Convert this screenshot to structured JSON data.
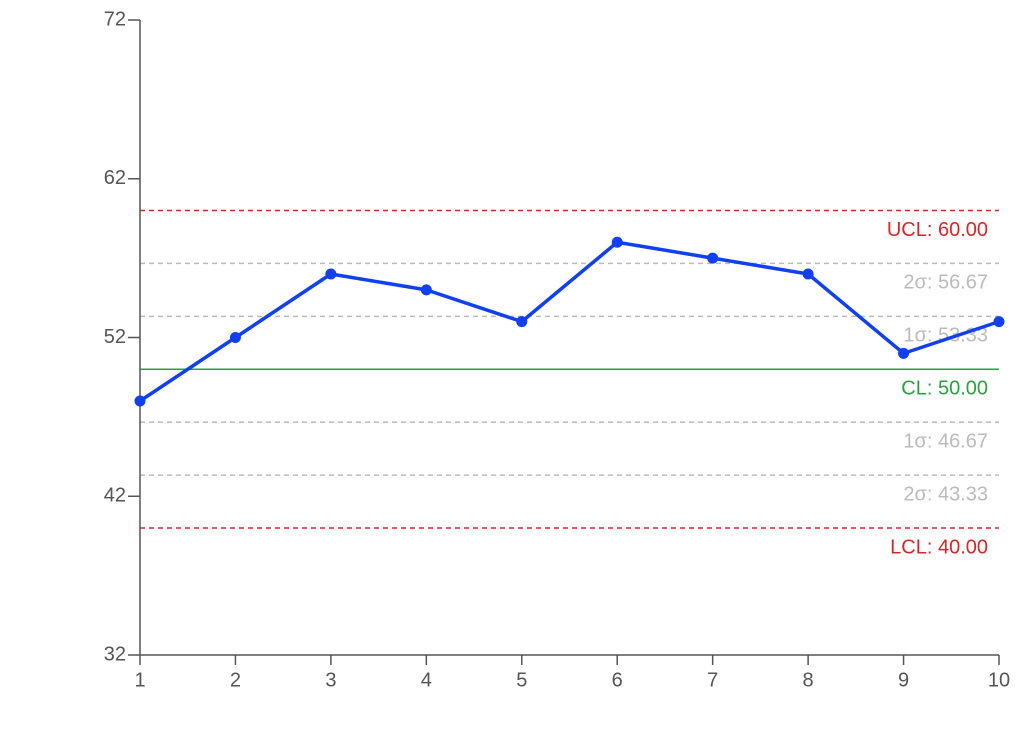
{
  "chart_data": {
    "type": "line",
    "x": [
      1,
      2,
      3,
      4,
      5,
      6,
      7,
      8,
      9,
      10
    ],
    "series": [
      {
        "color": "#1040f0",
        "values": [
          48,
          52,
          56,
          55,
          53,
          58,
          57,
          56,
          51,
          53
        ]
      }
    ],
    "xlim": [
      1,
      10
    ],
    "xticks": [
      1,
      2,
      3,
      4,
      5,
      6,
      7,
      8,
      9,
      10
    ],
    "ylim": [
      32,
      72
    ],
    "yticks": [
      32,
      42,
      52,
      62,
      72
    ],
    "control_lines": [
      {
        "value": 60,
        "label": "UCL: 60.00",
        "color": "#d62728",
        "dashed": true
      },
      {
        "value": 56.67,
        "label": "2σ: 56.67",
        "color": "#bbbbbb",
        "dashed": true
      },
      {
        "value": 53.33,
        "label": "1σ: 53.33",
        "color": "#bbbbbb",
        "dashed": true
      },
      {
        "value": 50,
        "label": "CL: 50.00",
        "color": "#2ca040",
        "dashed": false
      },
      {
        "value": 46.67,
        "label": "1σ: 46.67",
        "color": "#bbbbbb",
        "dashed": true
      },
      {
        "value": 43.33,
        "label": "2σ: 43.33",
        "color": "#bbbbbb",
        "dashed": true
      },
      {
        "value": 40,
        "label": "LCL: 40.00",
        "color": "#d62728",
        "dashed": true
      }
    ]
  }
}
